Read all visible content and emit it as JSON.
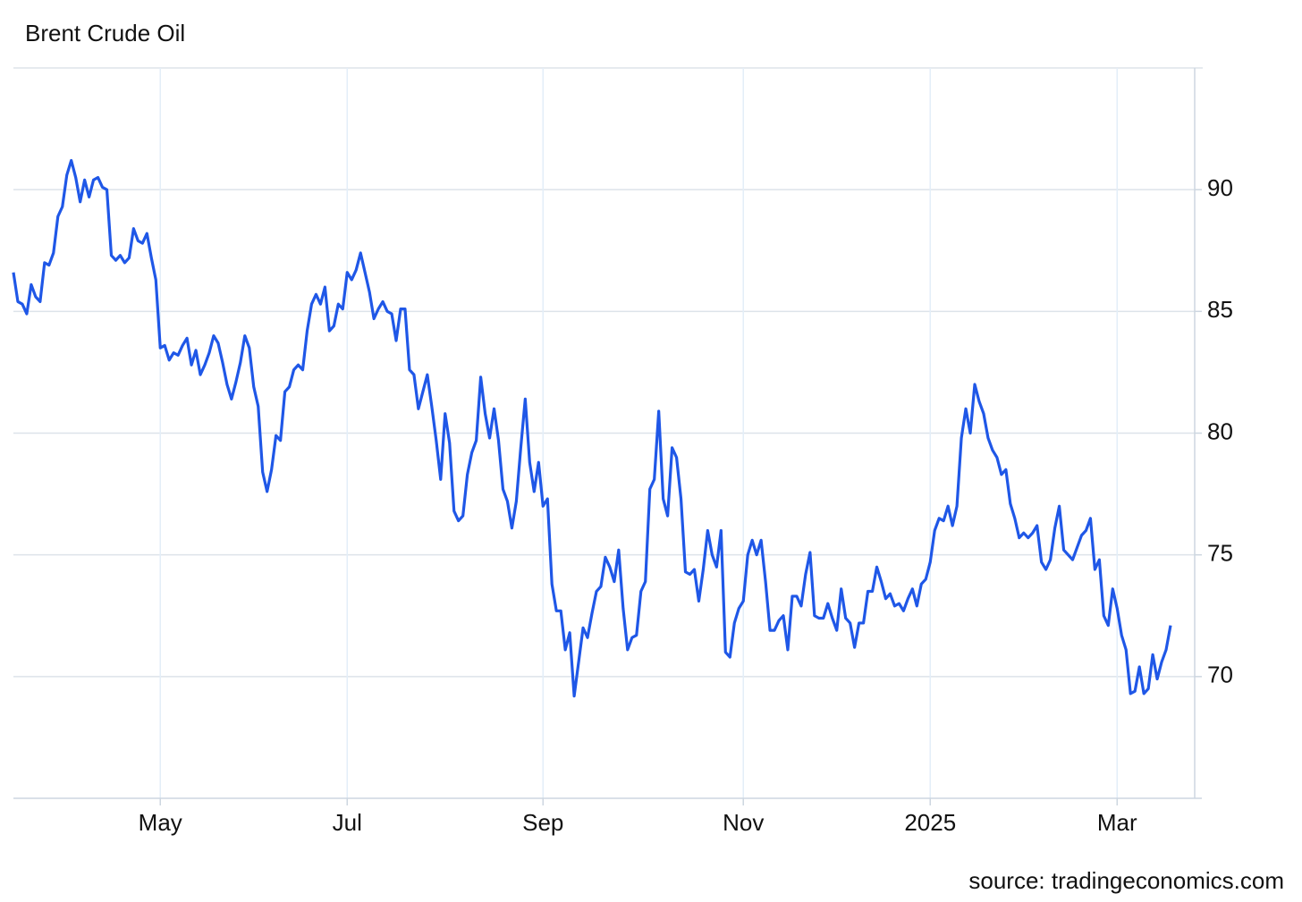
{
  "chart_data": {
    "type": "line",
    "title": "Brent Crude Oil",
    "source": "source: tradingeconomics.com",
    "color": "#1f57e7",
    "categories": [
      null,
      null,
      null,
      null,
      null,
      null,
      null,
      null,
      null,
      null,
      null,
      null,
      null,
      null,
      null,
      null,
      null,
      null,
      null,
      null,
      null,
      null,
      null,
      null,
      null,
      null,
      null,
      null,
      null,
      null,
      null,
      null,
      null,
      "May",
      null,
      null,
      null,
      null,
      null,
      null,
      null,
      null,
      null,
      null,
      null,
      null,
      null,
      null,
      null,
      null,
      null,
      null,
      null,
      null,
      null,
      null,
      null,
      null,
      null,
      null,
      null,
      null,
      null,
      null,
      null,
      null,
      null,
      null,
      null,
      null,
      null,
      null,
      null,
      null,
      null,
      "Jul",
      null,
      null,
      null,
      null,
      null,
      null,
      null,
      null,
      null,
      null,
      null,
      null,
      null,
      null,
      null,
      null,
      null,
      null,
      null,
      null,
      null,
      null,
      null,
      null,
      null,
      null,
      null,
      null,
      null,
      null,
      null,
      null,
      null,
      null,
      null,
      null,
      null,
      null,
      null,
      null,
      null,
      null,
      null,
      "Sep",
      null,
      null,
      null,
      null,
      null,
      null,
      null,
      null,
      null,
      null,
      null,
      null,
      null,
      null,
      null,
      null,
      null,
      null,
      null,
      null,
      null,
      null,
      null,
      null,
      null,
      null,
      null,
      null,
      null,
      null,
      null,
      null,
      null,
      null,
      null,
      null,
      null,
      null,
      null,
      null,
      null,
      null,
      null,
      null,
      "Nov",
      null,
      null,
      null,
      null,
      null,
      null,
      null,
      null,
      null,
      null,
      null,
      null,
      null,
      null,
      null,
      null,
      null,
      null,
      null,
      null,
      null,
      null,
      null,
      null,
      null,
      null,
      null,
      null,
      null,
      null,
      null,
      null,
      null,
      null,
      null,
      null,
      null,
      null,
      null,
      null,
      null,
      "2025",
      null,
      null,
      null,
      null,
      null,
      null,
      null,
      null,
      null,
      null,
      null,
      null,
      null,
      null,
      null,
      null,
      null,
      null,
      null,
      null,
      null,
      null,
      null,
      null,
      null,
      null,
      null,
      null,
      null,
      null,
      null,
      null,
      null,
      null,
      null,
      null,
      null,
      null,
      null,
      null,
      null,
      "Mar",
      null,
      null,
      null,
      null,
      null,
      null,
      null,
      null,
      null,
      null,
      null,
      null
    ],
    "values": [
      86.6,
      85.4,
      85.3,
      84.9,
      86.1,
      85.6,
      85.4,
      87.0,
      86.9,
      87.4,
      88.9,
      89.3,
      90.6,
      91.2,
      90.5,
      89.5,
      90.4,
      89.7,
      90.4,
      90.5,
      90.1,
      90.0,
      87.3,
      87.1,
      87.3,
      87.0,
      87.2,
      88.4,
      87.9,
      87.8,
      88.2,
      87.2,
      86.3,
      83.5,
      83.6,
      83.0,
      83.3,
      83.2,
      83.6,
      83.9,
      82.8,
      83.4,
      82.4,
      82.8,
      83.3,
      84.0,
      83.7,
      82.9,
      82.0,
      81.4,
      82.1,
      82.9,
      84.0,
      83.5,
      81.9,
      81.1,
      78.4,
      77.6,
      78.5,
      79.9,
      79.7,
      81.7,
      81.9,
      82.6,
      82.8,
      82.6,
      84.2,
      85.3,
      85.7,
      85.3,
      86.0,
      84.2,
      84.4,
      85.3,
      85.1,
      86.6,
      86.3,
      86.7,
      87.4,
      86.6,
      85.8,
      84.7,
      85.1,
      85.4,
      85.0,
      84.9,
      83.8,
      85.1,
      85.1,
      82.6,
      82.4,
      81.0,
      81.7,
      82.4,
      81.1,
      79.7,
      78.1,
      80.8,
      79.6,
      76.8,
      76.4,
      76.6,
      78.3,
      79.2,
      79.7,
      82.3,
      80.8,
      79.8,
      81.0,
      79.7,
      77.7,
      77.2,
      76.1,
      77.2,
      79.4,
      81.4,
      78.8,
      77.6,
      78.8,
      77.0,
      77.3,
      73.8,
      72.7,
      72.7,
      71.1,
      71.8,
      69.2,
      70.6,
      72.0,
      71.6,
      72.6,
      73.5,
      73.7,
      74.9,
      74.5,
      73.9,
      75.2,
      72.8,
      71.1,
      71.6,
      71.7,
      73.5,
      73.9,
      77.7,
      78.1,
      80.9,
      77.3,
      76.6,
      79.4,
      79.0,
      77.3,
      74.3,
      74.2,
      74.4,
      73.1,
      74.4,
      76.0,
      75.0,
      74.5,
      76.0,
      71.0,
      70.8,
      72.2,
      72.8,
      73.1,
      75.0,
      75.6,
      75.0,
      75.6,
      73.9,
      71.9,
      71.9,
      72.3,
      72.5,
      71.1,
      73.3,
      73.3,
      72.9,
      74.2,
      75.1,
      72.5,
      72.4,
      72.4,
      73.0,
      72.4,
      71.9,
      73.6,
      72.4,
      72.2,
      71.2,
      72.2,
      72.2,
      73.5,
      73.5,
      74.5,
      73.9,
      73.2,
      73.4,
      72.9,
      73.0,
      72.7,
      73.2,
      73.6,
      72.9,
      73.8,
      74.0,
      74.7,
      76.0,
      76.5,
      76.4,
      77.0,
      76.2,
      77.0,
      79.8,
      81.0,
      80.0,
      82.0,
      81.3,
      80.8,
      79.8,
      79.3,
      79.0,
      78.3,
      78.5,
      77.1,
      76.5,
      75.7,
      75.9,
      75.7,
      75.9,
      76.2,
      74.7,
      74.4,
      74.8,
      76.1,
      77.0,
      75.2,
      75.0,
      74.8,
      75.3,
      75.8,
      76.0,
      76.5,
      74.4,
      74.8,
      72.5,
      72.1,
      73.6,
      72.8,
      71.7,
      71.1,
      69.3,
      69.4,
      70.4,
      69.3,
      69.5,
      70.9,
      69.9,
      70.6,
      71.1,
      72.1
    ],
    "ylim": [
      65,
      95
    ],
    "yticks": [
      70,
      75,
      80,
      85,
      90
    ],
    "grid": true
  }
}
